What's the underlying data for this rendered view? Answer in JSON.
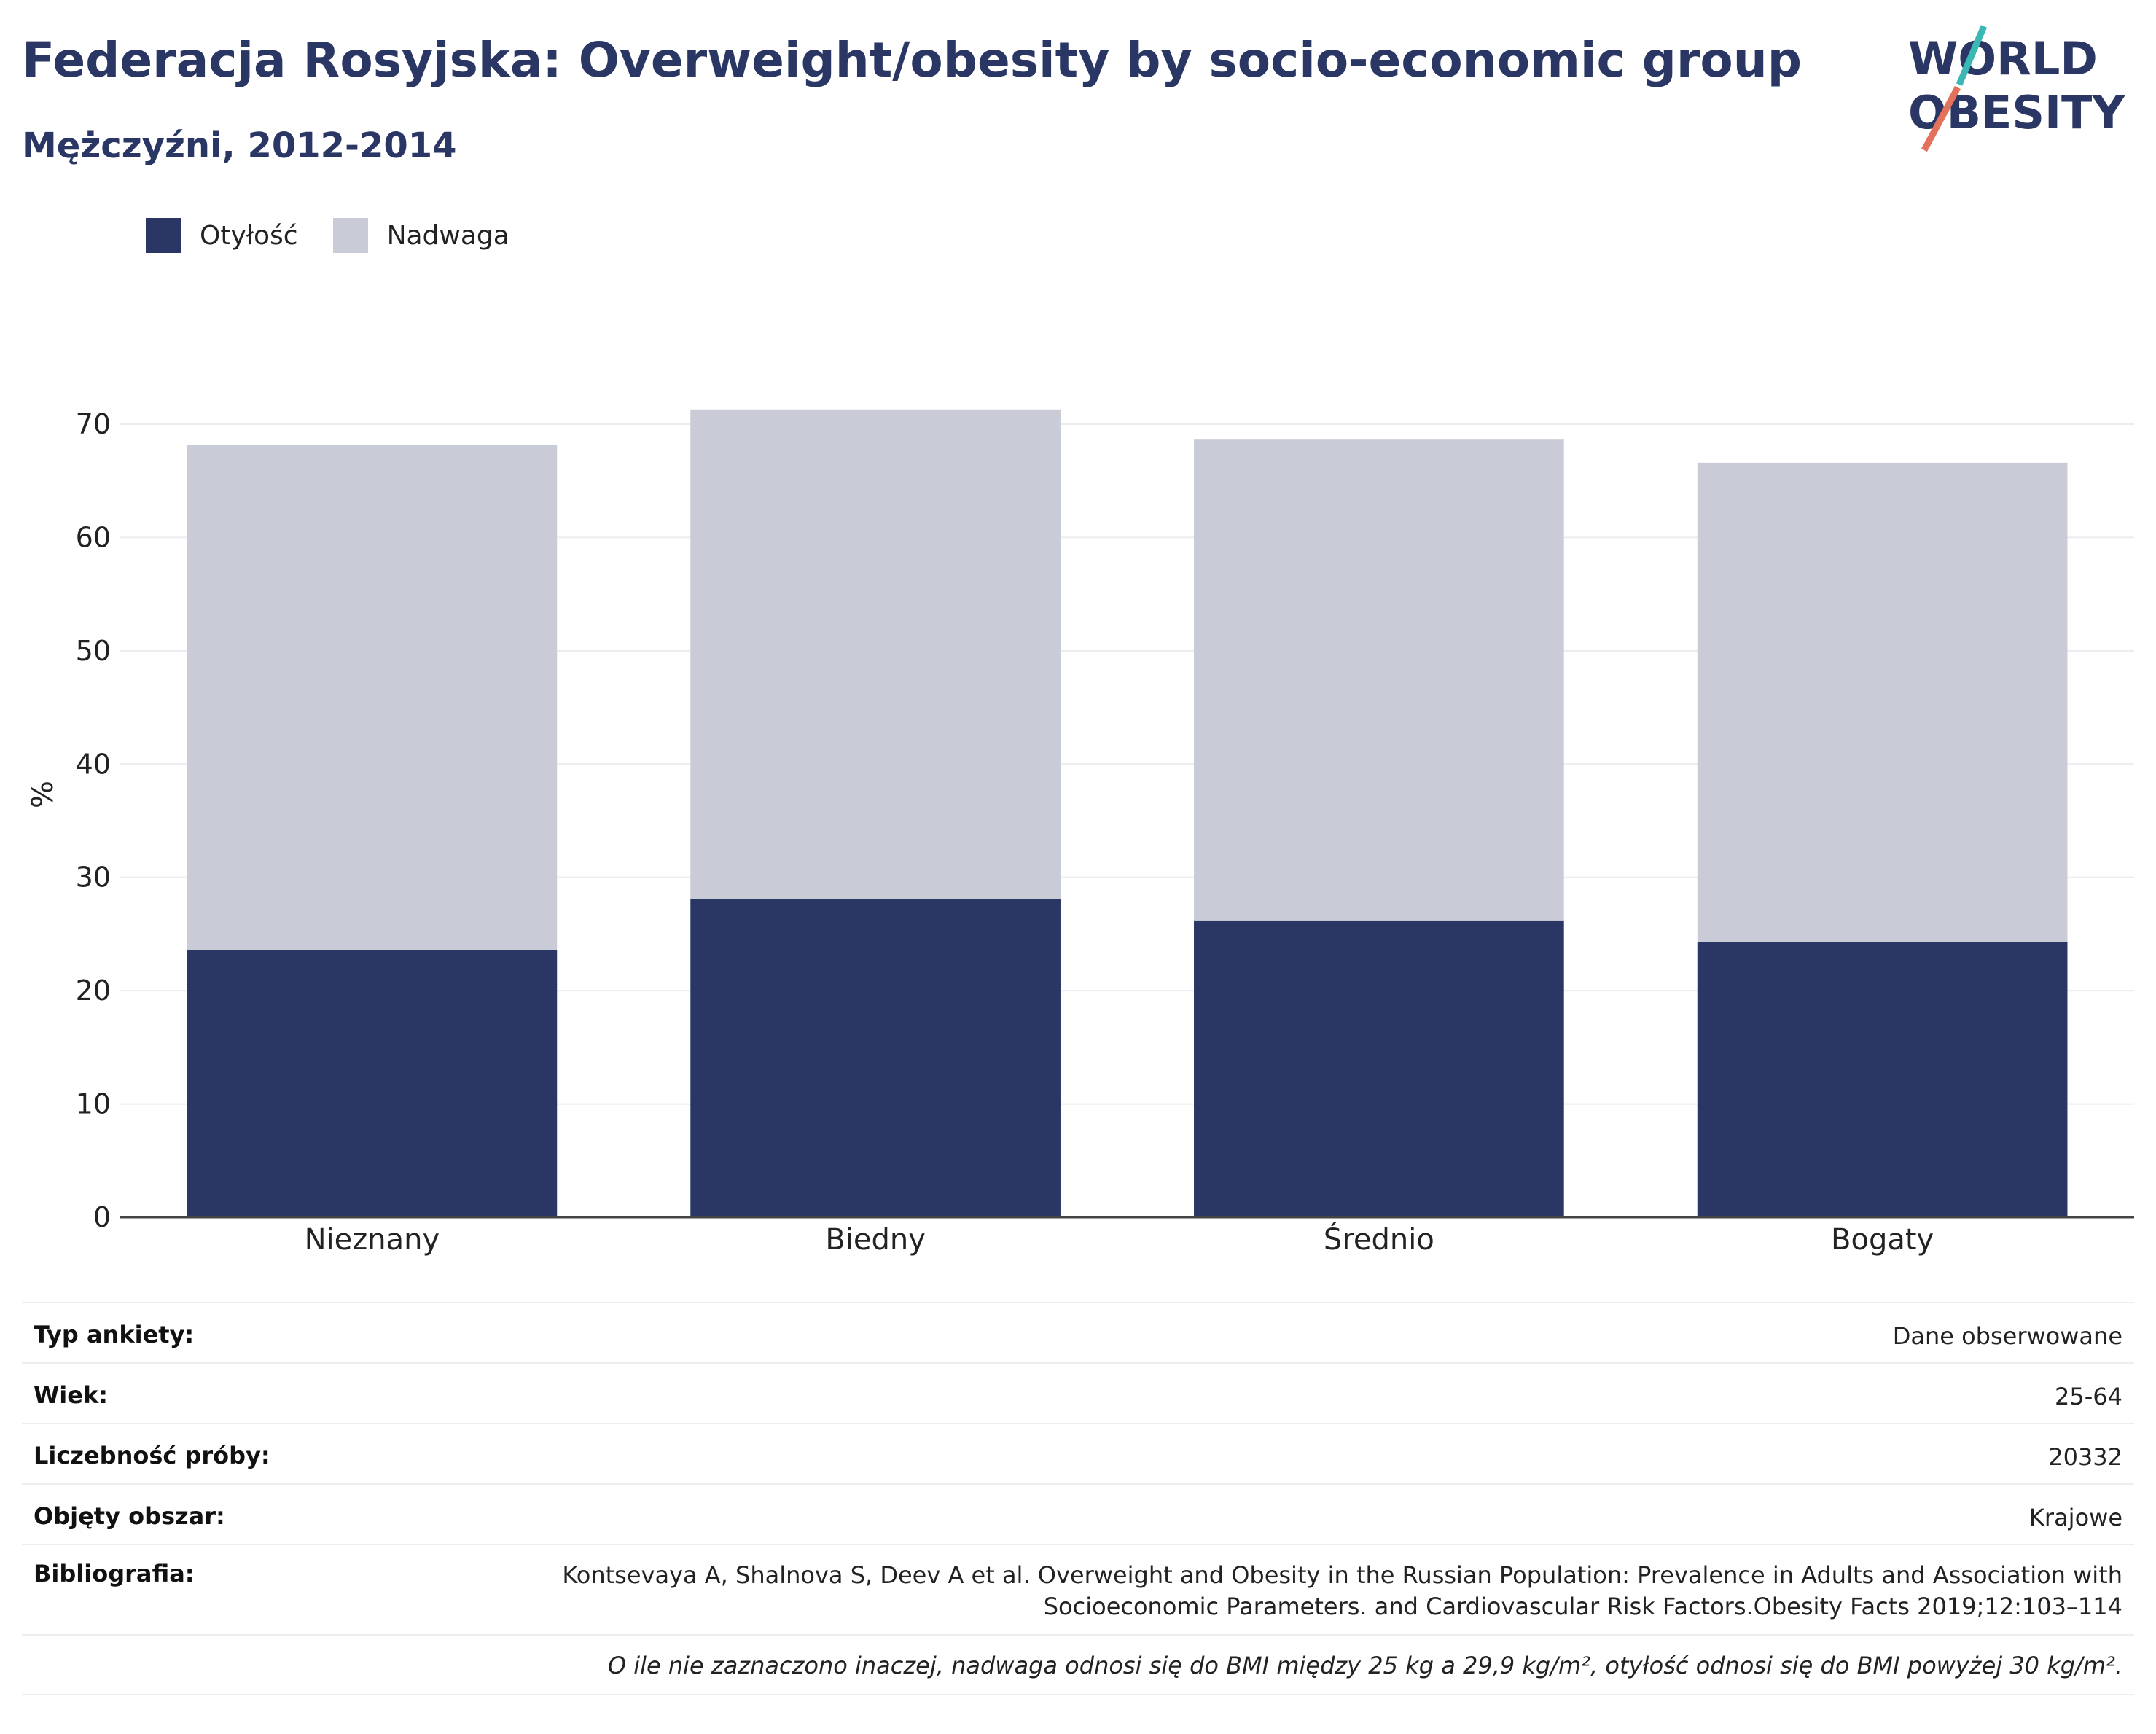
{
  "header": {
    "title": "Federacja Rosyjska: Overweight/obesity by socio-economic group",
    "subtitle": "Mężczyźni, 2012-2014"
  },
  "logo": {
    "line1": "WORLD",
    "line2": "OBESITY",
    "colors": {
      "text": "#2a3764",
      "slash_top": "#3bb7b4",
      "slash_bottom": "#e2725b"
    }
  },
  "chart_data": {
    "type": "bar",
    "stacked": true,
    "categories": [
      "Nieznany",
      "Biedny",
      "Średnio",
      "Bogaty"
    ],
    "series": [
      {
        "name": "Otyłość",
        "color": "#2a3764",
        "values": [
          23.6,
          28.1,
          26.2,
          24.3
        ]
      },
      {
        "name": "Nadwaga",
        "color": "#c9cbd7",
        "values": [
          44.6,
          43.2,
          42.5,
          42.3
        ]
      }
    ],
    "ylabel": "%",
    "ylim": [
      0,
      70
    ],
    "yticks": [
      0,
      10,
      20,
      30,
      40,
      50,
      60,
      70
    ],
    "grid": true,
    "legend": "top-left"
  },
  "info": {
    "rows": [
      {
        "label": "Typ ankiety:",
        "value": "Dane obserwowane"
      },
      {
        "label": "Wiek:",
        "value": "25-64"
      },
      {
        "label": "Liczebność próby:",
        "value": "20332"
      },
      {
        "label": "Objęty obszar:",
        "value": "Krajowe"
      }
    ],
    "bibliography": {
      "label": "Bibliografia:",
      "line1": "Kontsevaya A, Shalnova S, Deev A et al. Overweight and Obesity in the Russian Population: Prevalence in Adults and Association with",
      "line2": "Socioeconomic Parameters. and Cardiovascular Risk Factors.Obesity Facts 2019;12:103–114"
    },
    "note": "O ile nie zaznaczono inaczej, nadwaga odnosi się do BMI między 25 kg a 29,9 kg/m², otyłość odnosi się do BMI powyżej 30 kg/m²."
  }
}
